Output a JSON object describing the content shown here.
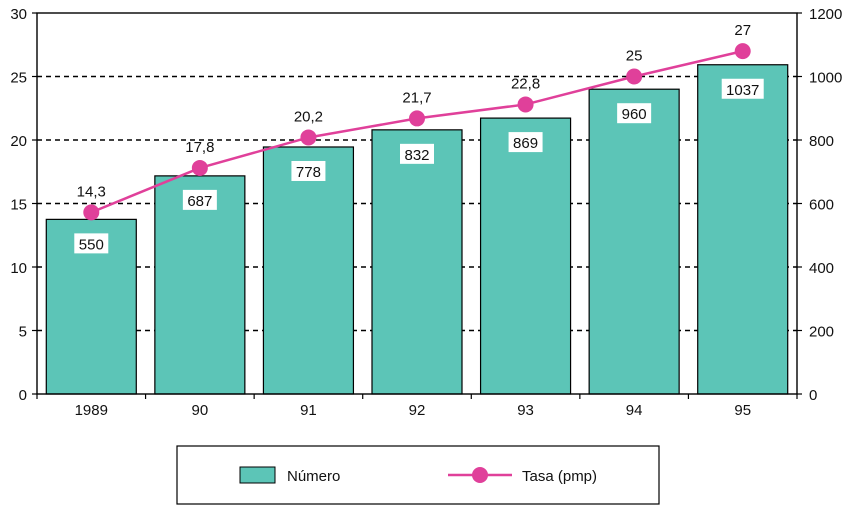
{
  "chart_data": {
    "type": "bar",
    "categories": [
      "1989",
      "90",
      "91",
      "92",
      "93",
      "94",
      "95"
    ],
    "series": [
      {
        "name": "Número",
        "type": "bar",
        "axis": "right",
        "values": [
          550,
          687,
          778,
          832,
          869,
          960,
          1037
        ],
        "data_labels": [
          "550",
          "687",
          "778",
          "832",
          "869",
          "960",
          "1037"
        ],
        "color": "#5cc5b7"
      },
      {
        "name": "Tasa (pmp)",
        "type": "line",
        "axis": "left",
        "values": [
          14.3,
          17.8,
          20.2,
          21.7,
          22.8,
          25,
          27
        ],
        "data_labels": [
          "14,3",
          "17,8",
          "20,2",
          "21,7",
          "22,8",
          "25",
          "27"
        ],
        "color": "#e0409a"
      }
    ],
    "y_left": {
      "ylim": [
        0,
        30
      ],
      "ticks": [
        "0",
        "5",
        "10",
        "15",
        "20",
        "25",
        "30"
      ]
    },
    "y_right": {
      "ylim": [
        0,
        1200
      ],
      "ticks": [
        "0",
        "200",
        "400",
        "600",
        "800",
        "1000",
        "1200"
      ]
    },
    "grid": "horizontal-dashed",
    "legend": {
      "position": "bottom-center",
      "entries": [
        "Número",
        "Tasa (pmp)"
      ]
    },
    "title": "",
    "xlabel": "",
    "ylabel": ""
  }
}
